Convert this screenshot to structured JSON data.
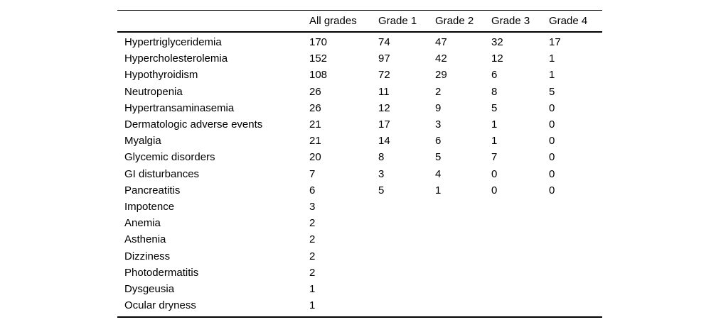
{
  "page": {
    "background": "#ffffff",
    "text_color": "#000000",
    "rule_color": "#000000"
  },
  "chart_data": {
    "type": "table",
    "title": "",
    "columns": [
      "",
      "All grades",
      "Grade 1",
      "Grade 2",
      "Grade 3",
      "Grade 4"
    ],
    "rows": [
      {
        "label": "Hypertriglyceridemia",
        "values": [
          "170",
          "74",
          "47",
          "32",
          "17"
        ]
      },
      {
        "label": "Hypercholesterolemia",
        "values": [
          "152",
          "97",
          "42",
          "12",
          "1"
        ]
      },
      {
        "label": "Hypothyroidism",
        "values": [
          "108",
          "72",
          "29",
          "6",
          "1"
        ]
      },
      {
        "label": "Neutropenia",
        "values": [
          "26",
          "11",
          "2",
          "8",
          "5"
        ]
      },
      {
        "label": "Hypertransaminasemia",
        "values": [
          "26",
          "12",
          "9",
          "5",
          "0"
        ]
      },
      {
        "label": "Dermatologic adverse events",
        "values": [
          "21",
          "17",
          "3",
          "1",
          "0"
        ]
      },
      {
        "label": "Myalgia",
        "values": [
          "21",
          "14",
          "6",
          "1",
          "0"
        ]
      },
      {
        "label": "Glycemic disorders",
        "values": [
          "20",
          "8",
          "5",
          "7",
          "0"
        ]
      },
      {
        "label": "GI disturbances",
        "values": [
          "7",
          "3",
          "4",
          "0",
          "0"
        ]
      },
      {
        "label": "Pancreatitis",
        "values": [
          "6",
          "5",
          "1",
          "0",
          "0"
        ]
      },
      {
        "label": "Impotence",
        "values": [
          "3",
          "",
          "",
          "",
          ""
        ]
      },
      {
        "label": "Anemia",
        "values": [
          "2",
          "",
          "",
          "",
          ""
        ]
      },
      {
        "label": "Asthenia",
        "values": [
          "2",
          "",
          "",
          "",
          ""
        ]
      },
      {
        "label": "Dizziness",
        "values": [
          "2",
          "",
          "",
          "",
          ""
        ]
      },
      {
        "label": "Photodermatitis",
        "values": [
          "2",
          "",
          "",
          "",
          ""
        ]
      },
      {
        "label": "Dysgeusia",
        "values": [
          "1",
          "",
          "",
          "",
          ""
        ]
      },
      {
        "label": "Ocular dryness",
        "values": [
          "1",
          "",
          "",
          "",
          ""
        ]
      }
    ]
  }
}
